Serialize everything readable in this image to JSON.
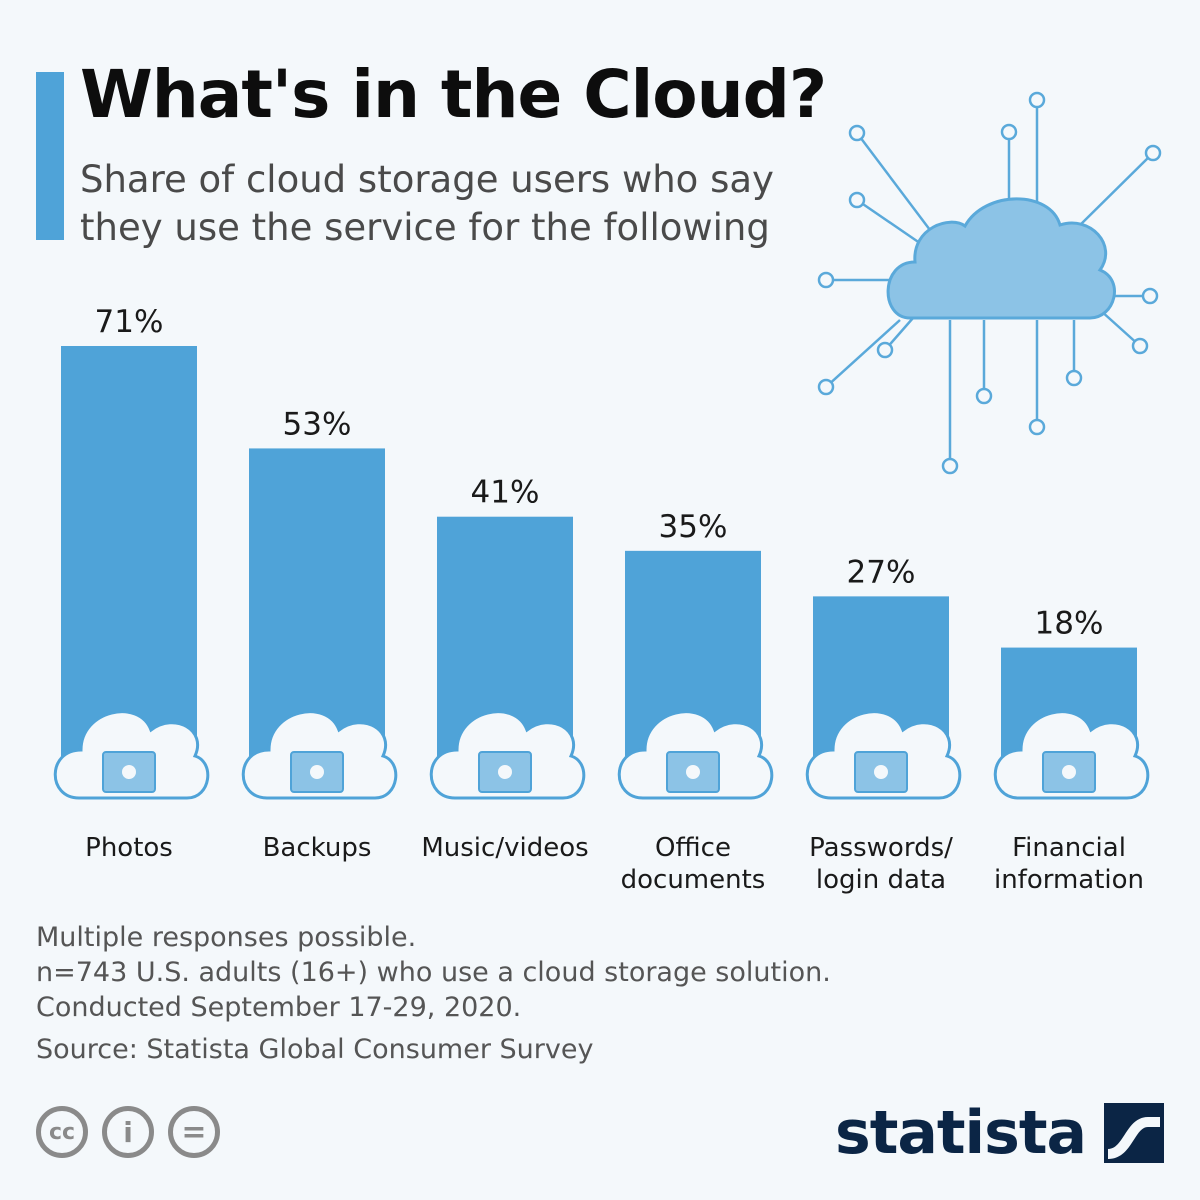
{
  "header": {
    "title": "What's in the Cloud?",
    "subtitle": "Share of cloud storage users who say they use the service for the following"
  },
  "colors": {
    "bar": "#4fa3d8",
    "accent": "#4fa3d8",
    "cloud_fill": "#8cc3e6",
    "line": "#5aa9da",
    "brand": "#0b2545"
  },
  "chart_data": {
    "type": "bar",
    "categories": [
      "Photos",
      "Backups",
      "Music/videos",
      "Office documents",
      "Passwords/ login data",
      "Financial information"
    ],
    "category_lines": [
      [
        "Photos"
      ],
      [
        "Backups"
      ],
      [
        "Music/videos"
      ],
      [
        "Office",
        "documents"
      ],
      [
        "Passwords/",
        "login data"
      ],
      [
        "Financial",
        "information"
      ]
    ],
    "values": [
      71,
      53,
      41,
      35,
      27,
      18
    ],
    "value_labels": [
      "71%",
      "53%",
      "41%",
      "35%",
      "27%",
      "18%"
    ],
    "icons": [
      "photos-icon",
      "backup-lock-icon",
      "music-video-icon",
      "document-icon",
      "password-lock-icon",
      "financial-icon"
    ],
    "ylim": [
      0,
      71
    ],
    "grid": false,
    "legend": "none"
  },
  "notes": {
    "line1": "Multiple responses possible.",
    "line2": "n=743 U.S. adults (16+) who use a cloud storage solution.",
    "line3": "Conducted September 17-29, 2020.",
    "source": "Source: Statista Global Consumer Survey"
  },
  "license": {
    "cc": "cc",
    "by": "i",
    "nd": "="
  },
  "brand": {
    "name": "statista"
  }
}
